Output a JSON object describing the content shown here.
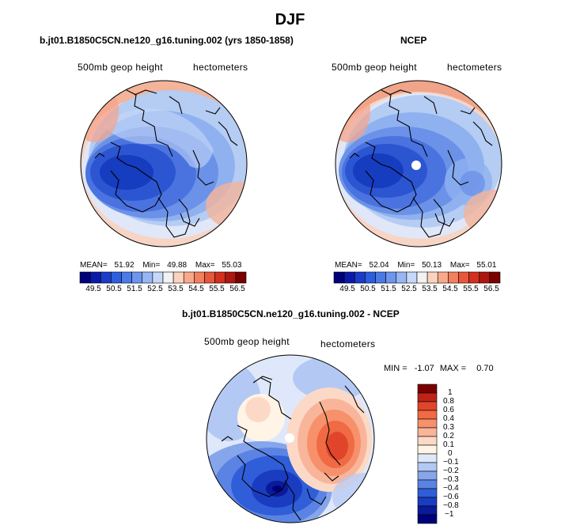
{
  "figure": {
    "title": "DJF"
  },
  "panels": {
    "model": {
      "title": "b.jt01.B1850C5CN.ne120_g16.tuning.002 (yrs 1850-1858)",
      "variable_label": "500mb geop height",
      "units_label": "hectometers",
      "stats": {
        "mean_label": "MEAN=",
        "mean_value": "51.92",
        "min_label": "Min=",
        "min_value": "49.88",
        "max_label": "Max=",
        "max_value": "55.03"
      }
    },
    "obs": {
      "title": "NCEP",
      "variable_label": "500mb geop height",
      "units_label": "hectometers",
      "stats": {
        "mean_label": "MEAN=",
        "mean_value": "52.04",
        "min_label": "Min=",
        "min_value": "50.13",
        "max_label": "Max=",
        "max_value": "55.01"
      }
    },
    "diff": {
      "title": "b.jt01.B1850C5CN.ne120_g16.tuning.002 - NCEP",
      "variable_label": "500mb geop height",
      "units_label": "hectometers",
      "stats": {
        "min_label": "MIN =",
        "min_value": "-1.07",
        "max_label": "MAX =",
        "max_value": "0.70"
      }
    }
  },
  "colorbars": {
    "absolute": {
      "tick_labels": [
        "49.5",
        "50.5",
        "51.5",
        "52.5",
        "53.5",
        "54.5",
        "55.5",
        "56.5"
      ],
      "colors": [
        "#00007a",
        "#0a1aa8",
        "#1a3cc8",
        "#2c5ee0",
        "#4a7ae8",
        "#6e96ee",
        "#97b6f3",
        "#c5d8f8",
        "#f2f2f2",
        "#fbd2bd",
        "#f8a98a",
        "#f2805e",
        "#e8573b",
        "#d32f1c",
        "#ad1710",
        "#7a0000"
      ]
    },
    "difference": {
      "tick_labels": [
        "1",
        "0.8",
        "0.6",
        "0.4",
        "0.3",
        "0.2",
        "0.1",
        "0",
        "−0.1",
        "−0.2",
        "−0.3",
        "−0.4",
        "−0.6",
        "−0.8",
        "−1"
      ],
      "colors": [
        "#7a0000",
        "#c0221a",
        "#e0452b",
        "#f06a44",
        "#f6916c",
        "#f9b599",
        "#fcd9c6",
        "#fff4e6",
        "#dfe8fb",
        "#b3c9f4",
        "#86a6ec",
        "#5b83e3",
        "#2f5ed8",
        "#1a3cc0",
        "#0a1a9a",
        "#00007a"
      ]
    }
  }
}
